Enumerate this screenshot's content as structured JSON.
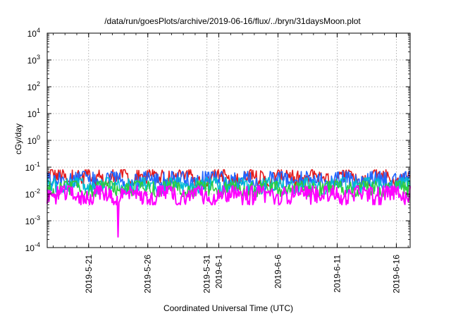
{
  "chart_data": {
    "type": "line",
    "title": "/data/run/goesPlots/archive/2019-06-16/flux/../bryn/31daysMoon.plot",
    "xlabel": "Coordinated Universal Time (UTC)",
    "ylabel": "cGy/day",
    "yscale": "log",
    "ylim": [
      0.0001,
      10000
    ],
    "xlim": [
      "2019-05-17T12:00",
      "2019-06-17T04:00"
    ],
    "grid": true,
    "y_ticks": [
      {
        "value": 0.0001,
        "base": "10",
        "exp": "-4"
      },
      {
        "value": 0.001,
        "base": "10",
        "exp": "-3"
      },
      {
        "value": 0.01,
        "base": "10",
        "exp": "-2"
      },
      {
        "value": 0.1,
        "base": "10",
        "exp": "-1"
      },
      {
        "value": 1,
        "base": "10",
        "exp": "0"
      },
      {
        "value": 10,
        "base": "10",
        "exp": "1"
      },
      {
        "value": 100,
        "base": "10",
        "exp": "2"
      },
      {
        "value": 1000,
        "base": "10",
        "exp": "3"
      },
      {
        "value": 10000,
        "base": "10",
        "exp": "4"
      }
    ],
    "x_ticks": [
      {
        "date": "2019-05-21",
        "label": "2019-5-21"
      },
      {
        "date": "2019-05-26",
        "label": "2019-5-26"
      },
      {
        "date": "2019-05-31",
        "label": "2019-5-31"
      },
      {
        "date": "2019-06-01",
        "label": "2019-6-1"
      },
      {
        "date": "2019-06-06",
        "label": "2019-6-6"
      },
      {
        "date": "2019-06-11",
        "label": "2019-6-11"
      },
      {
        "date": "2019-06-16",
        "label": "2019-6-16"
      }
    ],
    "series_colors": [
      "#e41a1c",
      "#2166ff",
      "#00bcd4",
      "#2ecc40",
      "#ff00ff"
    ],
    "series": [
      {
        "color": "#e41a1c",
        "typical_min": 0.02,
        "typical_max": 0.08
      },
      {
        "color": "#2166ff",
        "typical_min": 0.015,
        "typical_max": 0.07
      },
      {
        "color": "#00bcd4",
        "typical_min": 0.01,
        "typical_max": 0.04
      },
      {
        "color": "#2ecc40",
        "typical_min": 0.008,
        "typical_max": 0.03
      },
      {
        "color": "#ff00ff",
        "typical_min": 0.004,
        "typical_max": 0.02,
        "notable_min": {
          "date": "2019-05-23T12:00",
          "value": 0.00025
        }
      }
    ]
  }
}
